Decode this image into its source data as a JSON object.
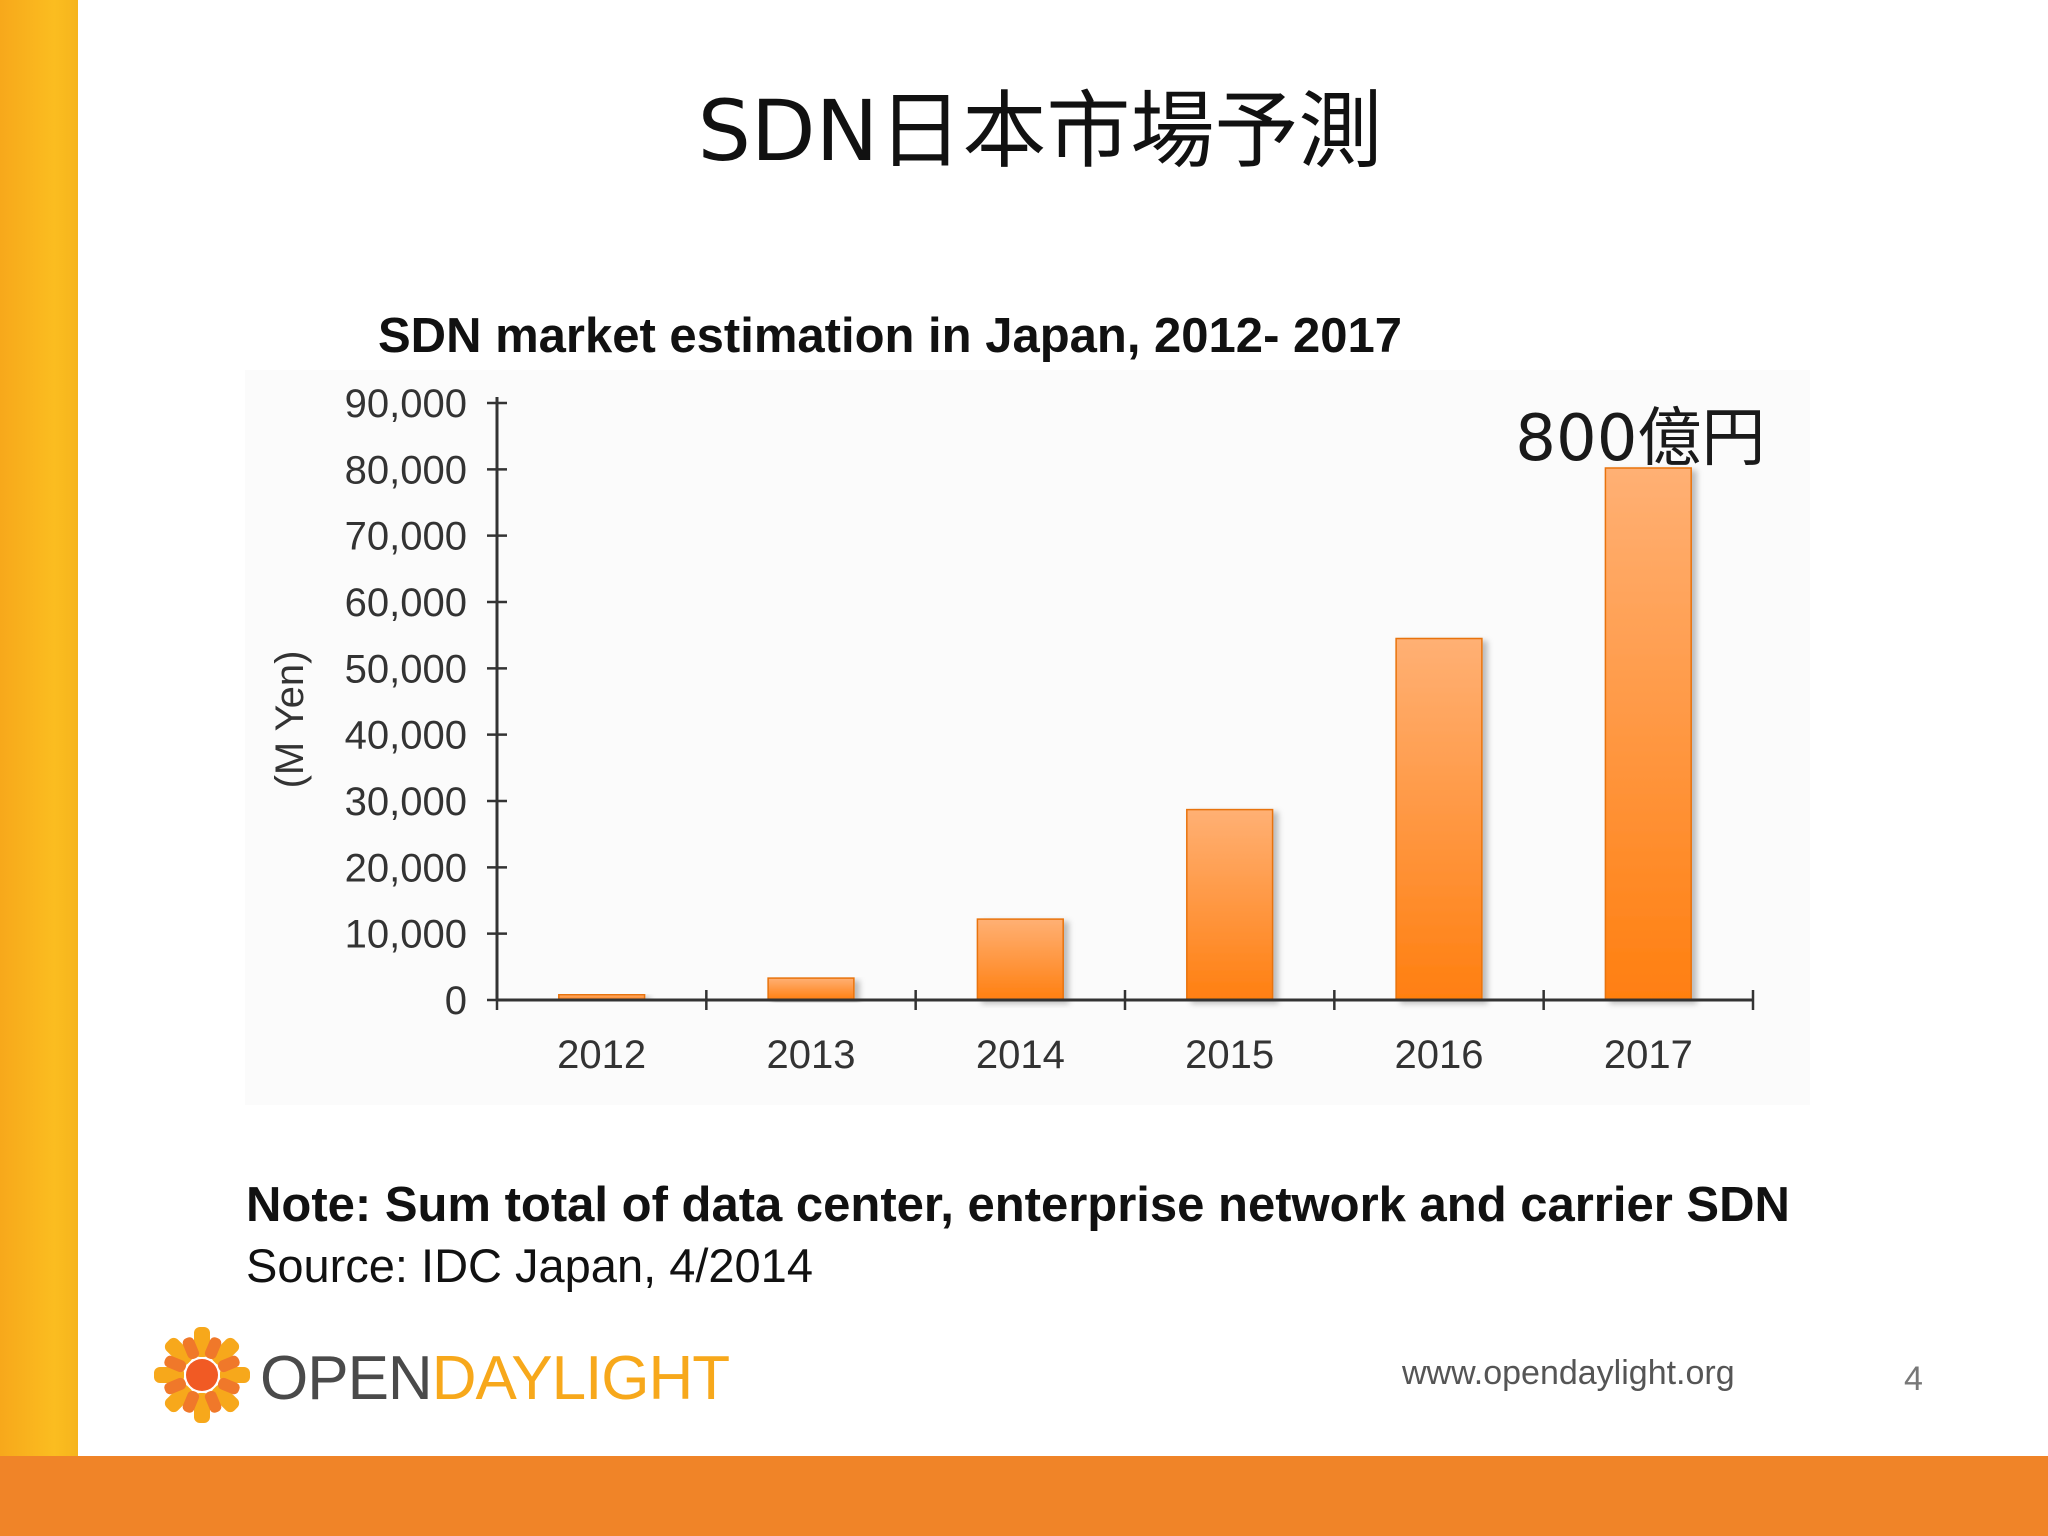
{
  "slide": {
    "title": "SDN日本市場予測",
    "note": "Note: Sum total of data center, enterprise network and carrier SDN",
    "source": "Source: IDC Japan, 4/2014",
    "website": "www.opendaylight.org",
    "page_number": "4"
  },
  "logo": {
    "part1": "OPEN",
    "part2": "DAYLIGHT",
    "icon": "sunburst-icon"
  },
  "colors": {
    "accent_yellow": "#f7a81b",
    "accent_orange": "#f08428",
    "bar_light": "#ffb074",
    "bar_dark": "#ff7f10"
  },
  "chart_data": {
    "type": "bar",
    "title": "SDN market estimation in Japan, 2012- 2017",
    "ylabel": "(M Yen)",
    "xlabel": "",
    "categories": [
      "2012",
      "2013",
      "2014",
      "2015",
      "2016",
      "2017"
    ],
    "values": [
      800,
      3300,
      12200,
      28700,
      54500,
      80200
    ],
    "ylim": [
      0,
      90000
    ],
    "yticks": [
      "0",
      "10,000",
      "20,000",
      "30,000",
      "40,000",
      "50,000",
      "60,000",
      "70,000",
      "80,000",
      "90,000"
    ],
    "annotation": "800億円",
    "grid": false,
    "legend": "none"
  }
}
